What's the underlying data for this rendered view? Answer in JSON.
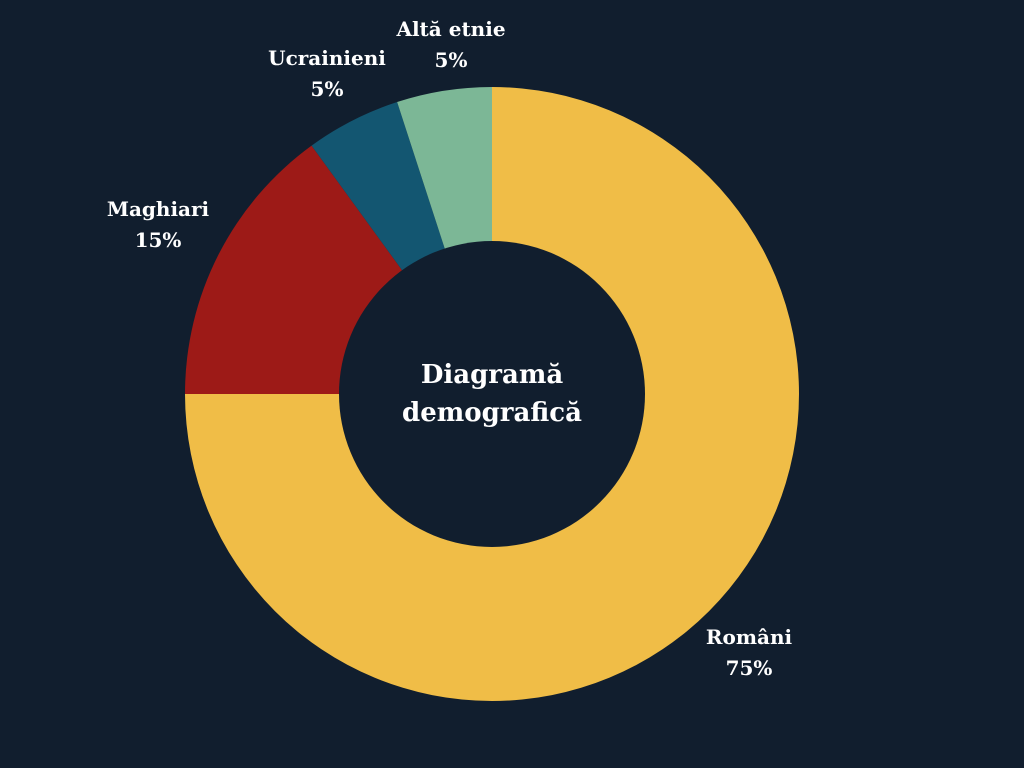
{
  "chart_data": {
    "type": "pie",
    "style": "donut",
    "title": "Diagramă demografică",
    "title_lines": [
      "Diagramă",
      "demografică"
    ],
    "background": "#111e2e",
    "legend": "none",
    "slices": [
      {
        "key": "romani",
        "label": "Români",
        "value": 75,
        "value_label": "75%",
        "color": "#f0bd47"
      },
      {
        "key": "maghiari",
        "label": "Maghiari",
        "value": 15,
        "value_label": "15%",
        "color": "#9d1a17"
      },
      {
        "key": "ucrainieni",
        "label": "Ucrainieni",
        "value": 5,
        "value_label": "5%",
        "color": "#135671"
      },
      {
        "key": "alta-etnie",
        "label": "Altă etnie",
        "value": 5,
        "value_label": "5%",
        "color": "#7cb796"
      }
    ]
  }
}
